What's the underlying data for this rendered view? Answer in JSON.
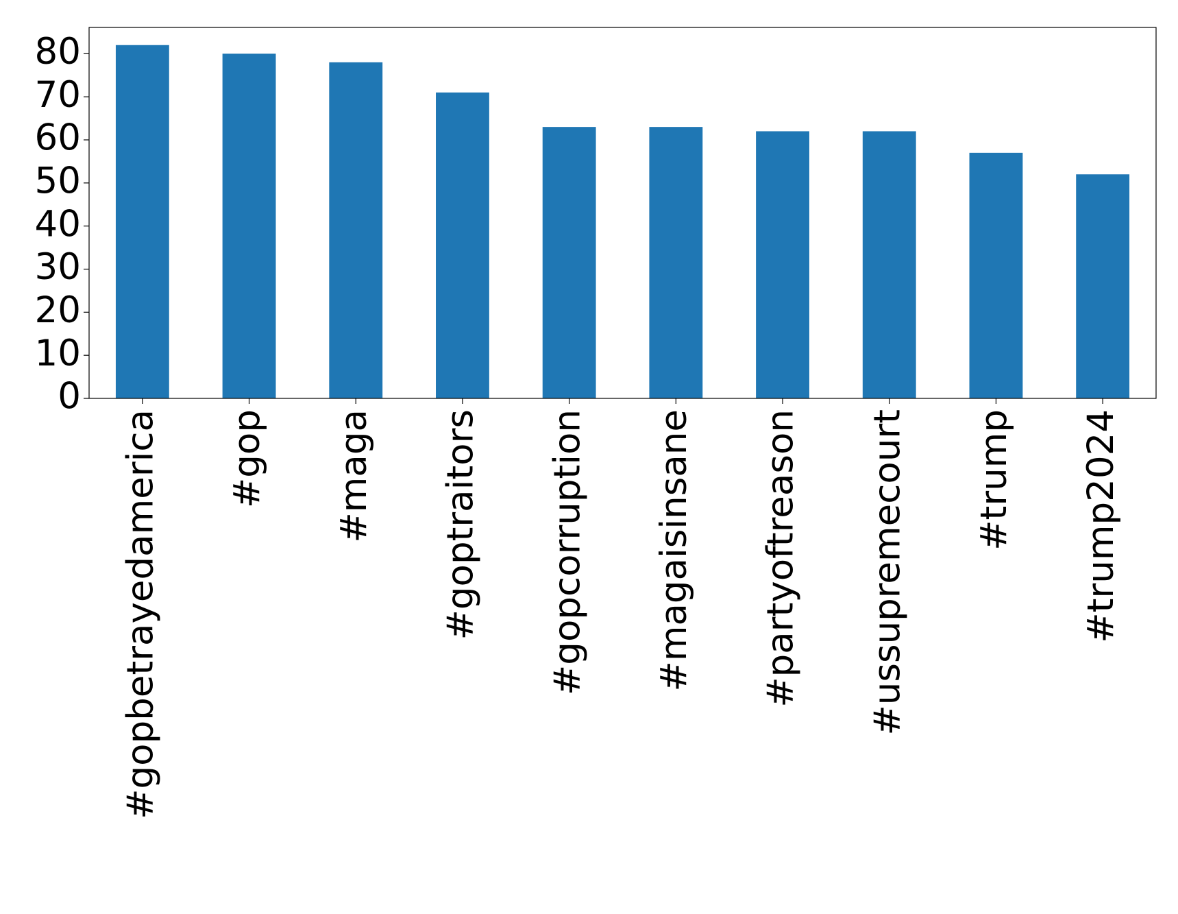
{
  "chart_data": {
    "type": "bar",
    "categories": [
      "#gopbetrayedamerica",
      "#gop",
      "#maga",
      "#goptraitors",
      "#gopcorruption",
      "#magaisinsane",
      "#partyoftreason",
      "#ussupremecourt",
      "#trump",
      "#trump2024"
    ],
    "values": [
      82,
      80,
      78,
      71,
      63,
      63,
      62,
      62,
      57,
      52
    ],
    "color": "#1f77b4",
    "ylim": [
      0,
      86.1
    ],
    "yticks": [
      0,
      10,
      20,
      30,
      40,
      50,
      60,
      70,
      80
    ]
  }
}
